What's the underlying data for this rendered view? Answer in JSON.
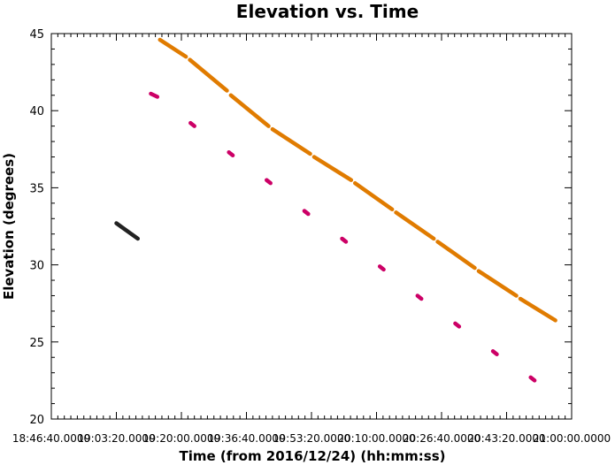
{
  "chart_data": {
    "type": "scatter",
    "title": "Elevation vs. Time",
    "xlabel": "Time (from 2016/12/24) (hh:mm:ss)",
    "ylabel": "Elevation (degrees)",
    "x_unit": "hh:mm:ss",
    "xlim": [
      "18:46:40",
      "21:00:00"
    ],
    "ylim": [
      20,
      45
    ],
    "xticks": [
      "18:46:40.0000",
      "19:03:20.0000",
      "19:20:00.0000",
      "19:36:40.0000",
      "19:53:20.0000",
      "20:10:00.0000",
      "20:26:40.0000",
      "20:43:20.0000",
      "21:00:00.0000"
    ],
    "yticks": [
      20,
      25,
      30,
      35,
      40,
      45
    ],
    "grid": false,
    "series": [
      {
        "color": "#222222",
        "style": "segments",
        "segments": [
          [
            [
              "19:03:20",
              32.7
            ],
            [
              "19:08:50",
              31.7
            ]
          ]
        ]
      },
      {
        "color": "#e07b00",
        "style": "segments",
        "segments": [
          [
            [
              "19:14:30",
              44.6
            ],
            [
              "19:21:10",
              43.5
            ]
          ],
          [
            [
              "19:22:10",
              43.3
            ],
            [
              "19:31:40",
              41.3
            ]
          ],
          [
            [
              "19:32:40",
              41.0
            ],
            [
              "19:42:20",
              39.0
            ]
          ],
          [
            [
              "19:43:20",
              38.8
            ],
            [
              "19:53:00",
              37.2
            ]
          ],
          [
            [
              "19:54:00",
              37.0
            ],
            [
              "20:03:30",
              35.5
            ]
          ],
          [
            [
              "20:04:30",
              35.3
            ],
            [
              "20:14:00",
              33.6
            ]
          ],
          [
            [
              "20:15:00",
              33.4
            ],
            [
              "20:24:40",
              31.7
            ]
          ],
          [
            [
              "20:25:40",
              31.5
            ],
            [
              "20:35:10",
              29.8
            ]
          ],
          [
            [
              "20:36:10",
              29.6
            ],
            [
              "20:45:50",
              28.0
            ]
          ],
          [
            [
              "20:46:50",
              27.8
            ],
            [
              "20:55:50",
              26.4
            ]
          ]
        ]
      },
      {
        "color": "#cc0066",
        "style": "segments",
        "segments": [
          [
            [
              "19:12:10",
              41.1
            ],
            [
              "19:13:50",
              40.9
            ]
          ],
          [
            [
              "19:22:20",
              39.2
            ],
            [
              "19:23:20",
              39.0
            ]
          ],
          [
            [
              "19:32:10",
              37.3
            ],
            [
              "19:33:10",
              37.1
            ]
          ],
          [
            [
              "19:41:50",
              35.5
            ],
            [
              "19:42:50",
              35.3
            ]
          ],
          [
            [
              "19:51:30",
              33.5
            ],
            [
              "19:52:30",
              33.3
            ]
          ],
          [
            [
              "20:01:10",
              31.7
            ],
            [
              "20:02:10",
              31.5
            ]
          ],
          [
            [
              "20:10:50",
              29.9
            ],
            [
              "20:11:50",
              29.7
            ]
          ],
          [
            [
              "20:20:30",
              28.0
            ],
            [
              "20:21:30",
              27.8
            ]
          ],
          [
            [
              "20:30:10",
              26.2
            ],
            [
              "20:31:10",
              26.0
            ]
          ],
          [
            [
              "20:39:50",
              24.4
            ],
            [
              "20:40:50",
              24.2
            ]
          ],
          [
            [
              "20:49:30",
              22.7
            ],
            [
              "20:50:30",
              22.5
            ]
          ]
        ]
      }
    ]
  }
}
